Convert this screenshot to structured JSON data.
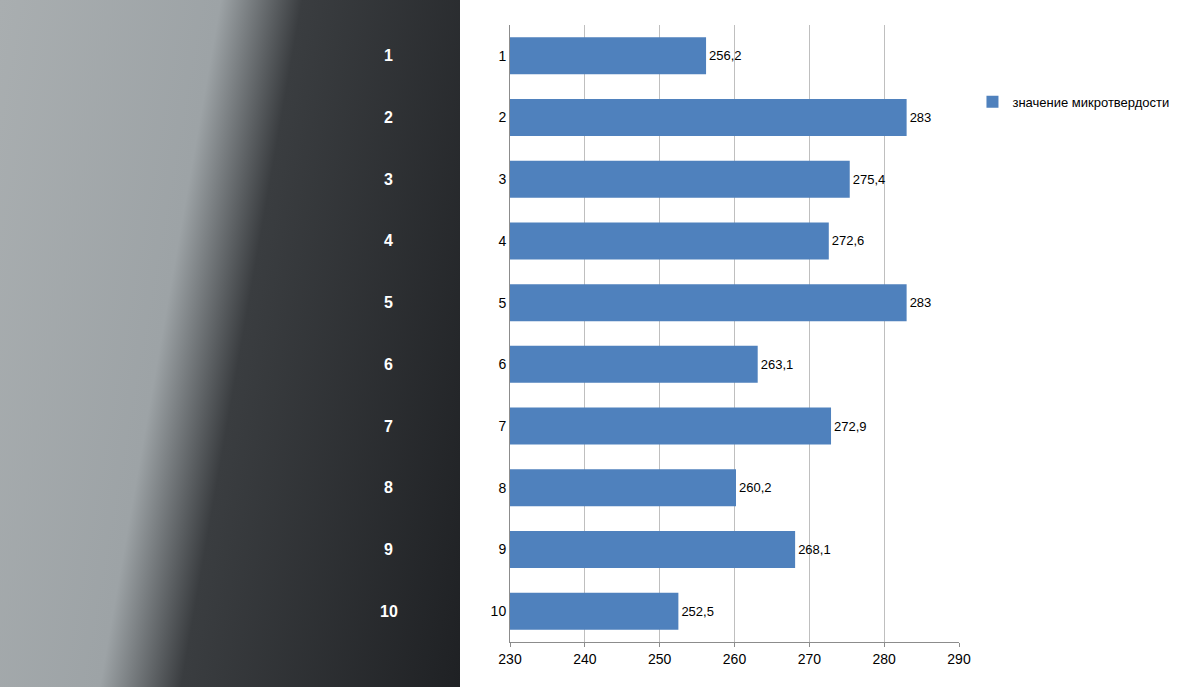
{
  "chart_data": {
    "type": "bar",
    "orientation": "horizontal",
    "categories": [
      "1",
      "2",
      "3",
      "4",
      "5",
      "6",
      "7",
      "8",
      "9",
      "10"
    ],
    "series": [
      {
        "name": "значение микротвердости",
        "color": "#4f81bd",
        "values": [
          256.2,
          283,
          275.4,
          272.6,
          283,
          263.1,
          272.9,
          260.2,
          268.1,
          252.5
        ],
        "value_labels": [
          "256,2",
          "283",
          "275,4",
          "272,6",
          "283",
          "263,1",
          "272,9",
          "260,2",
          "268,1",
          "252,5"
        ]
      }
    ],
    "xlim": [
      230,
      290
    ],
    "xticks": [
      230,
      240,
      250,
      260,
      270,
      280,
      290
    ],
    "grid": true,
    "data_labels": true,
    "legend": "right"
  }
}
